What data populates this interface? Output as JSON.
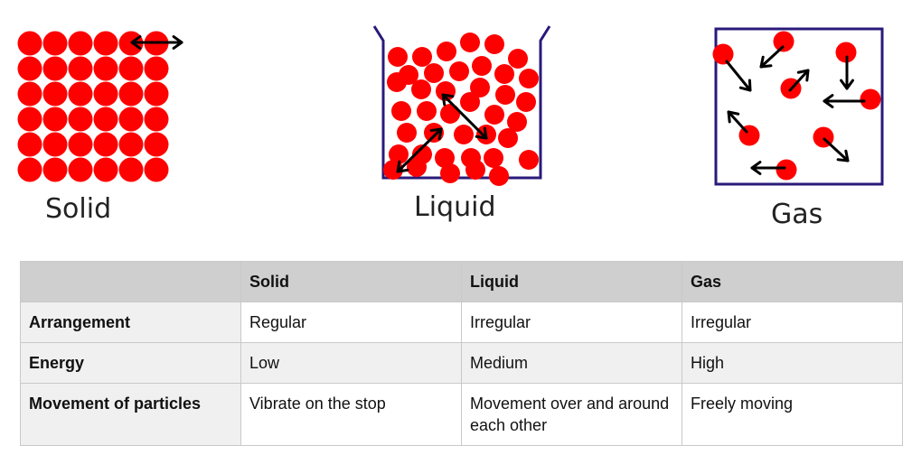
{
  "diagram": {
    "solid_label": "Solid",
    "liquid_label": "Liquid",
    "gas_label": "Gas",
    "particle_color": "#ff0000",
    "arrow_color": "#000000",
    "container_color": "#2a1a7a"
  },
  "table": {
    "headers": [
      "",
      "Solid",
      "Liquid",
      "Gas"
    ],
    "rows": [
      {
        "label": "Arrangement",
        "solid": "Regular",
        "liquid": "Irregular",
        "gas": "Irregular"
      },
      {
        "label": "Energy",
        "solid": "Low",
        "liquid": "Medium",
        "gas": "High"
      },
      {
        "label": "Movement of particles",
        "solid": "Vibrate on the stop",
        "liquid": "Movement over and around each other",
        "gas": "Freely moving"
      }
    ]
  }
}
